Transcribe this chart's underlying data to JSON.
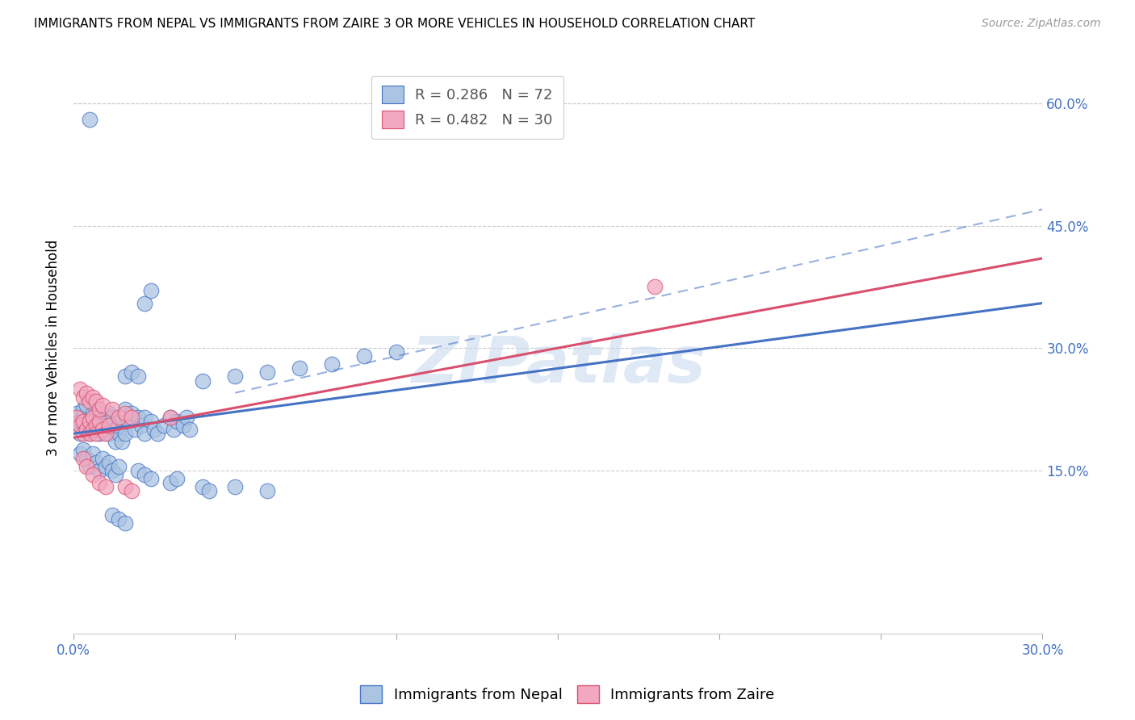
{
  "title": "IMMIGRANTS FROM NEPAL VS IMMIGRANTS FROM ZAIRE 3 OR MORE VEHICLES IN HOUSEHOLD CORRELATION CHART",
  "source": "Source: ZipAtlas.com",
  "ylabel": "3 or more Vehicles in Household",
  "xlim": [
    0.0,
    0.3
  ],
  "ylim": [
    -0.05,
    0.65
  ],
  "yticks": [
    0.15,
    0.3,
    0.45,
    0.6
  ],
  "xticks": [
    0.0,
    0.05,
    0.1,
    0.15,
    0.2,
    0.25,
    0.3
  ],
  "nepal_color": "#aac4e2",
  "zaire_color": "#f2a8c0",
  "nepal_line_color": "#4472c4",
  "zaire_line_color": "#d94f6e",
  "legend_nepal_label": "Immigrants from Nepal",
  "legend_zaire_label": "Immigrants from Zaire",
  "nepal_R": "0.286",
  "nepal_N": "72",
  "zaire_R": "0.482",
  "zaire_N": "30",
  "watermark": "ZIPatlas",
  "nepal_line": [
    0.0,
    0.195,
    0.3,
    0.355
  ],
  "nepal_dash": [
    0.05,
    0.245,
    0.3,
    0.47
  ],
  "zaire_line": [
    0.0,
    0.19,
    0.3,
    0.41
  ],
  "nepal_scatter": [
    [
      0.001,
      0.22
    ],
    [
      0.002,
      0.21
    ],
    [
      0.002,
      0.195
    ],
    [
      0.003,
      0.215
    ],
    [
      0.003,
      0.225
    ],
    [
      0.004,
      0.23
    ],
    [
      0.004,
      0.2
    ],
    [
      0.005,
      0.21
    ],
    [
      0.005,
      0.195
    ],
    [
      0.006,
      0.22
    ],
    [
      0.006,
      0.205
    ],
    [
      0.007,
      0.215
    ],
    [
      0.007,
      0.225
    ],
    [
      0.008,
      0.2
    ],
    [
      0.008,
      0.195
    ],
    [
      0.009,
      0.21
    ],
    [
      0.009,
      0.22
    ],
    [
      0.01,
      0.215
    ],
    [
      0.01,
      0.205
    ],
    [
      0.011,
      0.22
    ],
    [
      0.011,
      0.195
    ],
    [
      0.012,
      0.21
    ],
    [
      0.012,
      0.215
    ],
    [
      0.013,
      0.2
    ],
    [
      0.013,
      0.185
    ],
    [
      0.014,
      0.195
    ],
    [
      0.014,
      0.205
    ],
    [
      0.015,
      0.215
    ],
    [
      0.015,
      0.185
    ],
    [
      0.016,
      0.225
    ],
    [
      0.016,
      0.195
    ],
    [
      0.017,
      0.21
    ],
    [
      0.018,
      0.22
    ],
    [
      0.019,
      0.2
    ],
    [
      0.02,
      0.215
    ],
    [
      0.021,
      0.205
    ],
    [
      0.022,
      0.215
    ],
    [
      0.022,
      0.195
    ],
    [
      0.024,
      0.21
    ],
    [
      0.025,
      0.2
    ],
    [
      0.026,
      0.195
    ],
    [
      0.028,
      0.205
    ],
    [
      0.03,
      0.215
    ],
    [
      0.031,
      0.2
    ],
    [
      0.032,
      0.21
    ],
    [
      0.034,
      0.205
    ],
    [
      0.035,
      0.215
    ],
    [
      0.036,
      0.2
    ],
    [
      0.002,
      0.17
    ],
    [
      0.003,
      0.175
    ],
    [
      0.004,
      0.165
    ],
    [
      0.005,
      0.155
    ],
    [
      0.006,
      0.17
    ],
    [
      0.007,
      0.16
    ],
    [
      0.008,
      0.15
    ],
    [
      0.009,
      0.165
    ],
    [
      0.01,
      0.155
    ],
    [
      0.011,
      0.16
    ],
    [
      0.012,
      0.15
    ],
    [
      0.013,
      0.145
    ],
    [
      0.014,
      0.155
    ],
    [
      0.02,
      0.15
    ],
    [
      0.022,
      0.145
    ],
    [
      0.024,
      0.14
    ],
    [
      0.03,
      0.135
    ],
    [
      0.032,
      0.14
    ],
    [
      0.04,
      0.13
    ],
    [
      0.042,
      0.125
    ],
    [
      0.05,
      0.13
    ],
    [
      0.06,
      0.125
    ],
    [
      0.016,
      0.265
    ],
    [
      0.018,
      0.27
    ],
    [
      0.02,
      0.265
    ],
    [
      0.022,
      0.355
    ],
    [
      0.024,
      0.37
    ],
    [
      0.04,
      0.26
    ],
    [
      0.05,
      0.265
    ],
    [
      0.06,
      0.27
    ],
    [
      0.07,
      0.275
    ],
    [
      0.08,
      0.28
    ],
    [
      0.09,
      0.29
    ],
    [
      0.1,
      0.295
    ],
    [
      0.005,
      0.58
    ],
    [
      0.012,
      0.095
    ],
    [
      0.014,
      0.09
    ],
    [
      0.016,
      0.085
    ]
  ],
  "zaire_scatter": [
    [
      0.001,
      0.215
    ],
    [
      0.002,
      0.205
    ],
    [
      0.003,
      0.195
    ],
    [
      0.003,
      0.21
    ],
    [
      0.004,
      0.2
    ],
    [
      0.005,
      0.195
    ],
    [
      0.005,
      0.21
    ],
    [
      0.006,
      0.2
    ],
    [
      0.006,
      0.215
    ],
    [
      0.007,
      0.205
    ],
    [
      0.007,
      0.195
    ],
    [
      0.008,
      0.21
    ],
    [
      0.009,
      0.2
    ],
    [
      0.01,
      0.195
    ],
    [
      0.011,
      0.205
    ],
    [
      0.002,
      0.25
    ],
    [
      0.003,
      0.24
    ],
    [
      0.004,
      0.245
    ],
    [
      0.005,
      0.235
    ],
    [
      0.006,
      0.24
    ],
    [
      0.007,
      0.235
    ],
    [
      0.008,
      0.225
    ],
    [
      0.009,
      0.23
    ],
    [
      0.012,
      0.225
    ],
    [
      0.014,
      0.215
    ],
    [
      0.016,
      0.22
    ],
    [
      0.018,
      0.215
    ],
    [
      0.03,
      0.215
    ],
    [
      0.003,
      0.165
    ],
    [
      0.004,
      0.155
    ],
    [
      0.006,
      0.145
    ],
    [
      0.008,
      0.135
    ],
    [
      0.01,
      0.13
    ],
    [
      0.016,
      0.13
    ],
    [
      0.018,
      0.125
    ],
    [
      0.18,
      0.375
    ]
  ]
}
